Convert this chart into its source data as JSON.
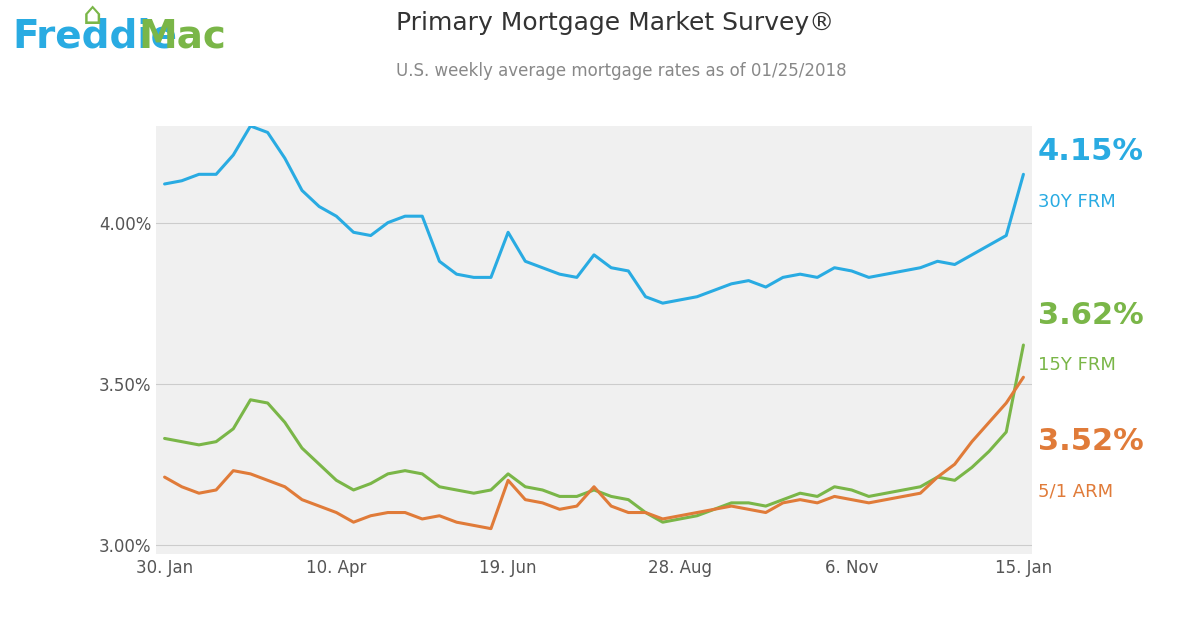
{
  "title": "Primary Mortgage Market Survey®",
  "subtitle": "U.S. weekly average mortgage rates as of 01/25/2018",
  "title_color": "#333333",
  "subtitle_color": "#666666",
  "bg_color": "#f0f0f0",
  "plot_bg_color": "#f5f5f5",
  "x_labels": [
    "30. Jan",
    "10. Apr",
    "19. Jun",
    "28. Aug",
    "6. Nov",
    "15. Jan"
  ],
  "ylim": [
    2.97,
    4.3
  ],
  "yticks": [
    3.0,
    3.5,
    4.0
  ],
  "ytick_labels": [
    "3.00%",
    "3.50%",
    "4.00%"
  ],
  "series": {
    "frm30": {
      "color": "#29abe2",
      "label": "30Y FRM",
      "end_value": "4.15%",
      "values": [
        4.12,
        4.13,
        4.15,
        4.15,
        4.21,
        4.3,
        4.28,
        4.2,
        4.1,
        4.05,
        4.02,
        3.97,
        3.96,
        4.0,
        4.02,
        4.02,
        3.88,
        3.84,
        3.83,
        3.83,
        3.97,
        3.88,
        3.86,
        3.84,
        3.83,
        3.9,
        3.86,
        3.85,
        3.77,
        3.75,
        3.76,
        3.77,
        3.79,
        3.81,
        3.82,
        3.8,
        3.83,
        3.84,
        3.83,
        3.86,
        3.85,
        3.83,
        3.84,
        3.85,
        3.86,
        3.88,
        3.87,
        3.9,
        3.93,
        3.96,
        4.15
      ]
    },
    "frm15": {
      "color": "#7ab648",
      "label": "15Y FRM",
      "end_value": "3.62%",
      "values": [
        3.33,
        3.32,
        3.31,
        3.32,
        3.36,
        3.45,
        3.44,
        3.38,
        3.3,
        3.25,
        3.2,
        3.17,
        3.19,
        3.22,
        3.23,
        3.22,
        3.18,
        3.17,
        3.16,
        3.17,
        3.22,
        3.18,
        3.17,
        3.15,
        3.15,
        3.17,
        3.15,
        3.14,
        3.1,
        3.07,
        3.08,
        3.09,
        3.11,
        3.13,
        3.13,
        3.12,
        3.14,
        3.16,
        3.15,
        3.18,
        3.17,
        3.15,
        3.16,
        3.17,
        3.18,
        3.21,
        3.2,
        3.24,
        3.29,
        3.35,
        3.62
      ]
    },
    "arm51": {
      "color": "#e07b39",
      "label": "5/1 ARM",
      "end_value": "3.52%",
      "values": [
        3.21,
        3.18,
        3.16,
        3.17,
        3.23,
        3.22,
        3.2,
        3.18,
        3.14,
        3.12,
        3.1,
        3.07,
        3.09,
        3.1,
        3.1,
        3.08,
        3.09,
        3.07,
        3.06,
        3.05,
        3.2,
        3.14,
        3.13,
        3.11,
        3.12,
        3.18,
        3.12,
        3.1,
        3.1,
        3.08,
        3.09,
        3.1,
        3.11,
        3.12,
        3.11,
        3.1,
        3.13,
        3.14,
        3.13,
        3.15,
        3.14,
        3.13,
        3.14,
        3.15,
        3.16,
        3.21,
        3.25,
        3.32,
        3.38,
        3.44,
        3.52
      ]
    }
  },
  "freddie_blue": "#29abe2",
  "freddie_green": "#7ab648",
  "label_color_30y": "#29abe2",
  "label_color_15y": "#7ab648",
  "label_color_5arm": "#e07b39"
}
